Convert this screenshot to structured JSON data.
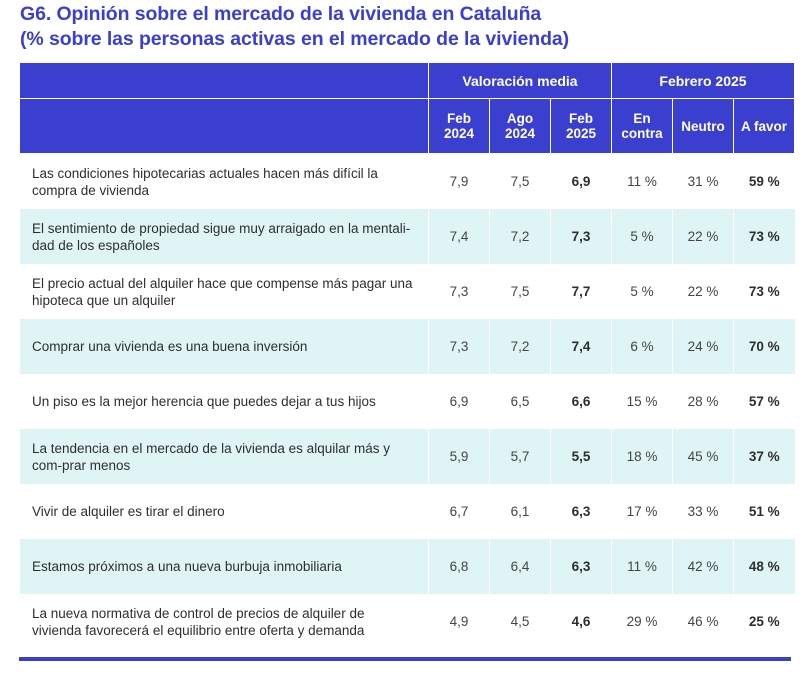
{
  "title": {
    "line1": "G6. Opinión sobre el mercado de la vivienda en Cataluña",
    "line2": "(% sobre las personas activas en el mercado de la vivienda)"
  },
  "header": {
    "group1": "Valoración media",
    "group2": "Febrero 2025",
    "columns": [
      [
        "Feb",
        "2024"
      ],
      [
        "Ago",
        "2024"
      ],
      [
        "Feb",
        "2025"
      ],
      [
        "En",
        "contra"
      ],
      [
        "Neutro",
        ""
      ],
      [
        "A favor",
        ""
      ]
    ]
  },
  "rows": [
    {
      "label": "Las condiciones hipotecarias actuales hacen más difícil la compra de vivienda",
      "feb2024": "7,9",
      "ago2024": "7,5",
      "feb2025": "6,9",
      "en_contra": "11 %",
      "neutro": "31 %",
      "a_favor": "59 %"
    },
    {
      "label": "El sentimiento de propiedad sigue muy arraigado en la mentali-dad de los españoles",
      "feb2024": "7,4",
      "ago2024": "7,2",
      "feb2025": "7,3",
      "en_contra": "5 %",
      "neutro": "22 %",
      "a_favor": "73 %"
    },
    {
      "label": "El precio actual del alquiler hace que compense más pagar una hipoteca que un alquiler",
      "feb2024": "7,3",
      "ago2024": "7,5",
      "feb2025": "7,7",
      "en_contra": "5 %",
      "neutro": "22 %",
      "a_favor": "73 %"
    },
    {
      "label": "Comprar una vivienda es una buena inversión",
      "feb2024": "7,3",
      "ago2024": "7,2",
      "feb2025": "7,4",
      "en_contra": "6 %",
      "neutro": "24 %",
      "a_favor": "70 %"
    },
    {
      "label": "Un piso es la mejor herencia que puedes dejar a tus hijos",
      "feb2024": "6,9",
      "ago2024": "6,5",
      "feb2025": "6,6",
      "en_contra": "15 %",
      "neutro": "28 %",
      "a_favor": "57 %"
    },
    {
      "label": "La tendencia en el mercado de la vivienda es alquilar más y com-prar menos",
      "feb2024": "5,9",
      "ago2024": "5,7",
      "feb2025": "5,5",
      "en_contra": "18 %",
      "neutro": "45 %",
      "a_favor": "37 %"
    },
    {
      "label": "Vivir de alquiler es tirar el dinero",
      "feb2024": "6,7",
      "ago2024": "6,1",
      "feb2025": "6,3",
      "en_contra": "17 %",
      "neutro": "33 %",
      "a_favor": "51 %"
    },
    {
      "label": "Estamos próximos a una nueva burbuja inmobiliaria",
      "feb2024": "6,8",
      "ago2024": "6,4",
      "feb2025": "6,3",
      "en_contra": "11 %",
      "neutro": "42 %",
      "a_favor": "48 %"
    },
    {
      "label": "La nueva normativa de control de precios de alquiler de vivienda favorecerá el equilibrio entre oferta y demanda",
      "feb2024": "4,9",
      "ago2024": "4,5",
      "feb2025": "4,6",
      "en_contra": "29 %",
      "neutro": "46 %",
      "a_favor": "25 %"
    }
  ],
  "colors": {
    "accent": "#3a3fcf",
    "row_alt": "#dff5f5"
  }
}
